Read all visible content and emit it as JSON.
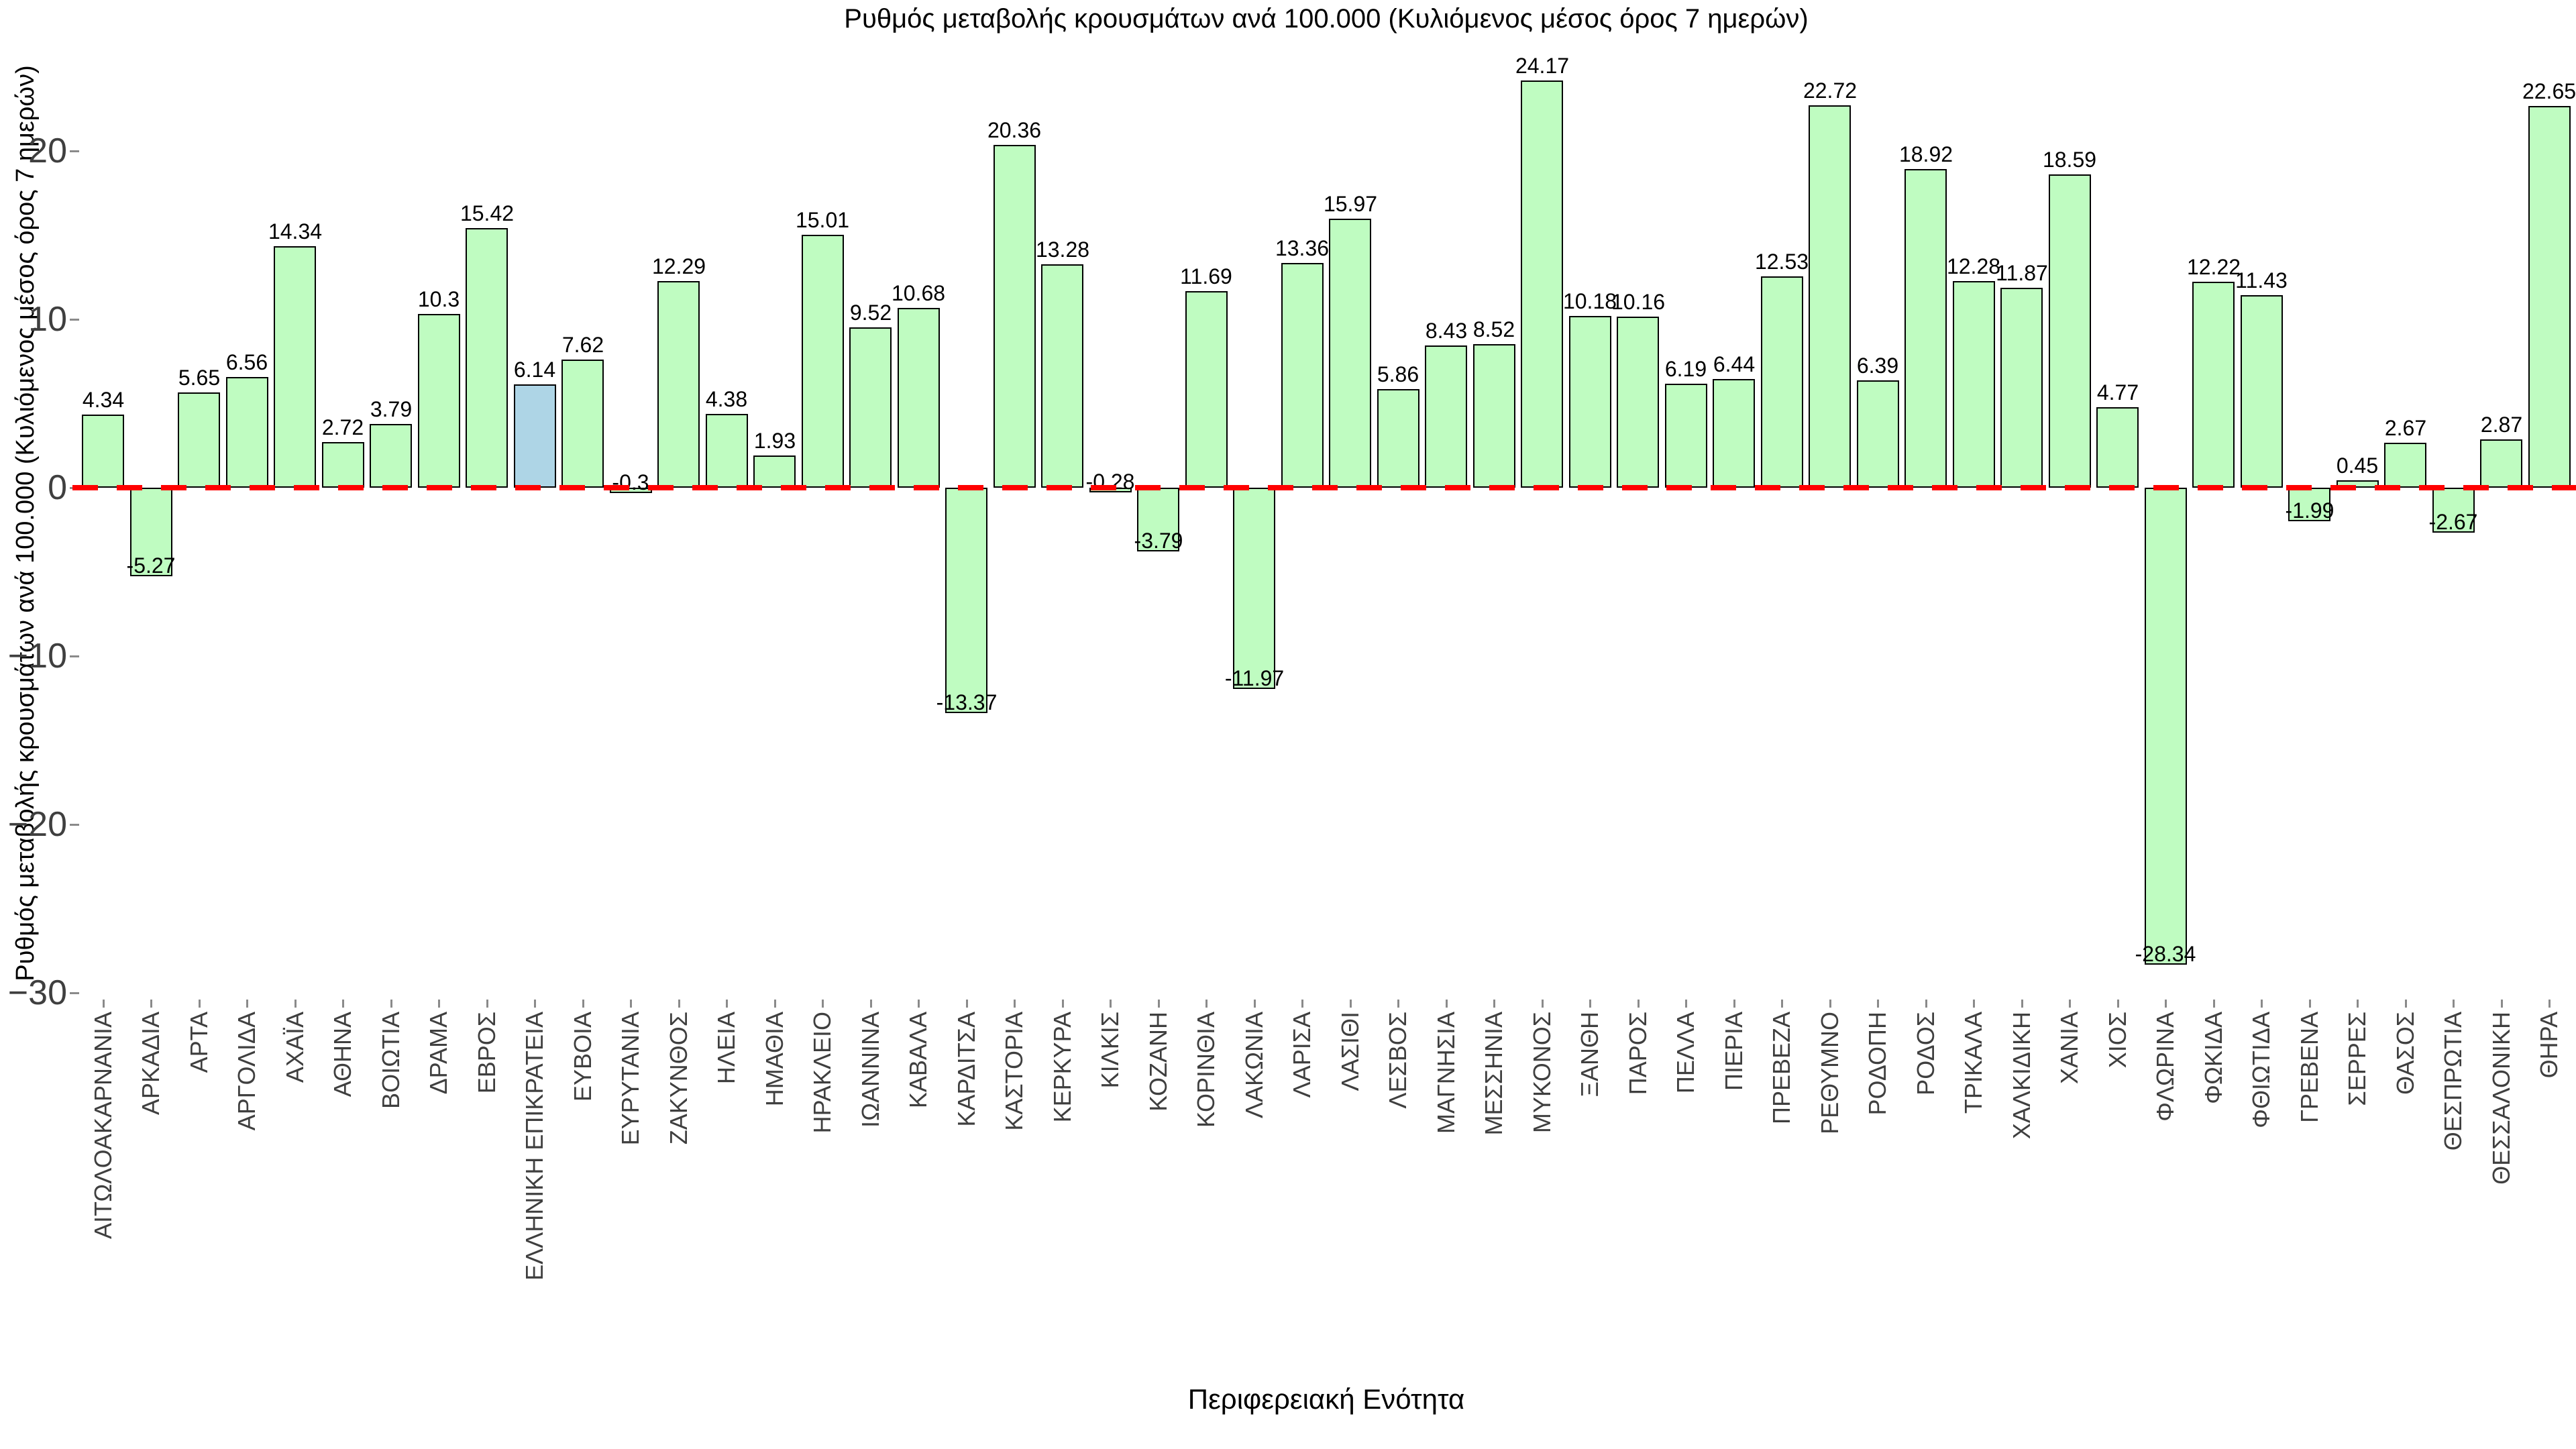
{
  "title": "Ρυθμός μεταβολής κρουσμάτων ανά 100.000 (Κυλιόμενος μέσος όρος 7 ημερών)",
  "xlabel": "Περιφερειακή Ενότητα",
  "ylabel": "Ρυθμός μεταβολής κρουσμάτων ανά 100.000 (Κυλιόμενος μέσος όρος 7 ημερών)",
  "colors": {
    "background": "#ffffff",
    "bar_fill": "#bffcc1",
    "highlight_fill": "#aed5e6",
    "bar_edge": "#000000",
    "zero_line": "#ff0000",
    "tick_label": "#3f3f3f",
    "value_label": "#000000"
  },
  "chart_data": {
    "type": "bar",
    "title": "Ρυθμός μεταβολής κρουσμάτων ανά 100.000 (Κυλιόμενος μέσος όρος 7 ημερών)",
    "xlabel": "Περιφερειακή Ενότητα",
    "ylabel": "Ρυθμός μεταβολής κρουσμάτων ανά 100.000 (Κυλιόμενος μέσος όρος 7 ημερών)",
    "grid": false,
    "legend_position": "none",
    "ylim": [
      -30.5,
      25.5
    ],
    "yticks": [
      20,
      10,
      0,
      -10,
      -20,
      -30
    ],
    "ytick_labels": [
      "20",
      "10",
      "0",
      "−10",
      "−20",
      "−30"
    ],
    "zero_line": {
      "y": 0,
      "style": "dashed",
      "color": "#ff0000"
    },
    "highlight_category": "ΕΛΛΗΝΙΚΗ ΕΠΙΚΡΑΤΕΙΑ",
    "highlight_index": 9,
    "categories": [
      "ΑΙΤΩΛΟΑΚΑΡΝΑΝΙΑ",
      "ΑΡΚΑΔΙΑ",
      "ΑΡΤΑ",
      "ΑΡΓΟΛΙΔΑ",
      "ΑΧΑΪΑ",
      "ΑΘΗΝΑ",
      "ΒΟΙΩΤΙΑ",
      "ΔΡΑΜΑ",
      "ΕΒΡΟΣ",
      "ΕΛΛΗΝΙΚΗ ΕΠΙΚΡΑΤΕΙΑ",
      "ΕΥΒΟΙΑ",
      "ΕΥΡΥΤΑΝΙΑ",
      "ΖΑΚΥΝΘΟΣ",
      "ΗΛΕΙΑ",
      "ΗΜΑΘΙΑ",
      "ΗΡΑΚΛΕΙΟ",
      "ΙΩΑΝΝΙΝΑ",
      "ΚΑΒΑΛΑ",
      "ΚΑΡΔΙΤΣΑ",
      "ΚΑΣΤΟΡΙΑ",
      "ΚΕΡΚΥΡΑ",
      "ΚΙΛΚΙΣ",
      "ΚΟΖΑΝΗ",
      "ΚΟΡΙΝΘΙΑ",
      "ΛΑΚΩΝΙΑ",
      "ΛΑΡΙΣΑ",
      "ΛΑΣΙΘΙ",
      "ΛΕΣΒΟΣ",
      "ΜΑΓΝΗΣΙΑ",
      "ΜΕΣΣΗΝΙΑ",
      "ΜΥΚΟΝΟΣ",
      "ΞΑΝΘΗ",
      "ΠΑΡΟΣ",
      "ΠΕΛΛΑ",
      "ΠΙΕΡΙΑ",
      "ΠΡΕΒΕΖΑ",
      "ΡΕΘΥΜΝΟ",
      "ΡΟΔΟΠΗ",
      "ΡΟΔΟΣ",
      "ΤΡΙΚΑΛΑ",
      "ΧΑΛΚΙΔΙΚΗ",
      "ΧΑΝΙΑ",
      "ΧΙΟΣ",
      "ΦΛΩΡΙΝΑ",
      "ΦΩΚΙΔΑ",
      "ΦΘΙΩΤΙΔΑ",
      "ΓΡΕΒΕΝΑ",
      "ΣΕΡΡΕΣ",
      "ΘΑΣΟΣ",
      "ΘΕΣΠΡΩΤΙΑ",
      "ΘΕΣΣΑΛΟΝΙΚΗ",
      "ΘΗΡΑ"
    ],
    "values": [
      4.34,
      -5.27,
      5.65,
      6.56,
      14.34,
      2.72,
      3.79,
      10.3,
      15.42,
      6.14,
      7.62,
      -0.3,
      12.29,
      4.38,
      1.93,
      15.01,
      9.52,
      10.68,
      -13.37,
      20.36,
      13.28,
      -0.28,
      -3.79,
      11.69,
      -11.97,
      13.36,
      15.97,
      5.86,
      8.43,
      8.52,
      24.17,
      10.18,
      10.16,
      6.19,
      6.44,
      12.53,
      22.72,
      6.39,
      18.92,
      12.28,
      11.87,
      18.59,
      4.77,
      -28.34,
      12.22,
      11.43,
      -1.99,
      0.45,
      2.67,
      -2.67,
      2.87,
      22.65
    ],
    "value_labels": [
      "4.34",
      "-5.27",
      "5.65",
      "6.56",
      "14.34",
      "2.72",
      "3.79",
      "10.3",
      "15.42",
      "6.14",
      "7.62",
      "-0.3",
      "12.29",
      "4.38",
      "1.93",
      "15.01",
      "9.52",
      "10.68",
      "-13.37",
      "20.36",
      "13.28",
      "-0.28",
      "-3.79",
      "11.69",
      "-11.97",
      "13.36",
      "15.97",
      "5.86",
      "8.43",
      "8.52",
      "24.17",
      "10.18",
      "10.16",
      "6.19",
      "6.44",
      "12.53",
      "22.72",
      "6.39",
      "18.92",
      "12.28",
      "11.87",
      "18.59",
      "4.77",
      "-28.34",
      "12.22",
      "11.43",
      "-1.99",
      "0.45",
      "2.67",
      "-2.67",
      "2.87",
      "22.65"
    ]
  }
}
